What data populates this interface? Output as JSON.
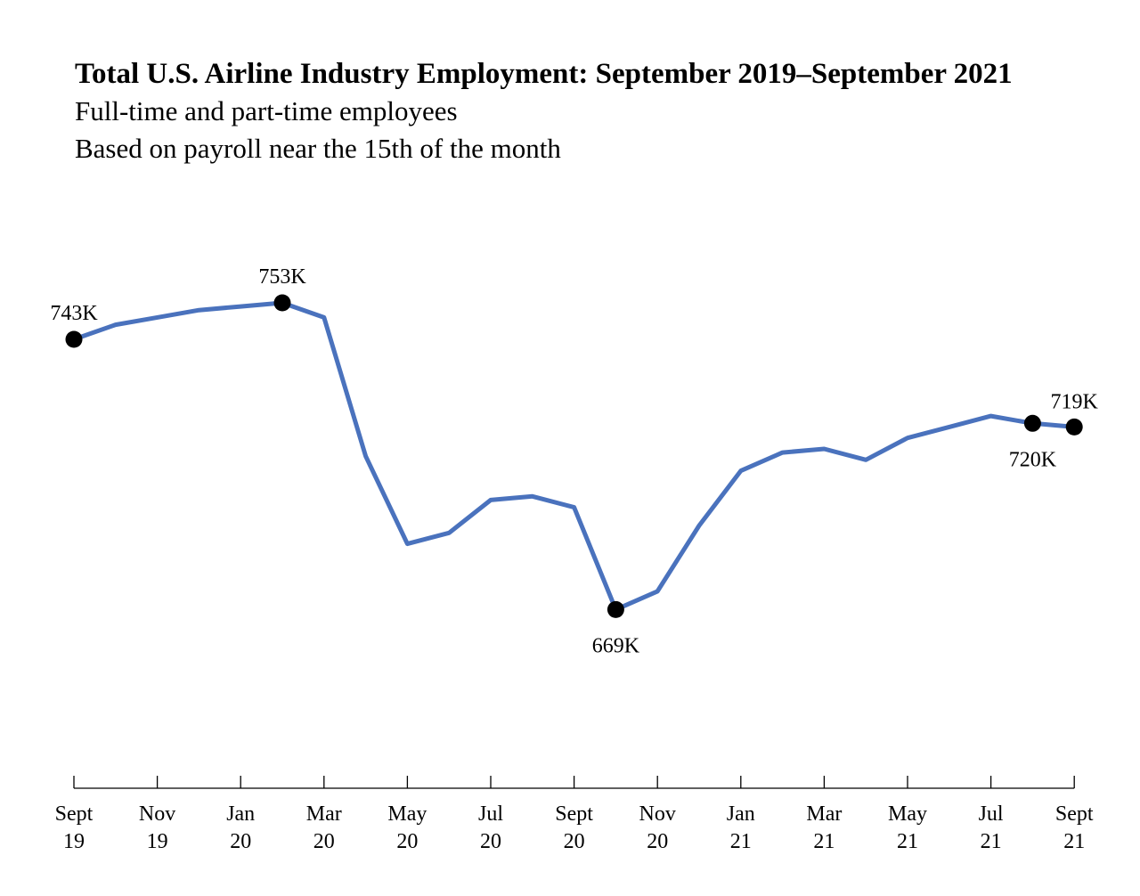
{
  "chart_data": {
    "type": "line",
    "title": "Total U.S. Airline Industry Employment: September 2019–September 2021",
    "subtitle_lines": [
      "Full-time and part-time employees",
      "Based on payroll near the 15th of the month"
    ],
    "xlabel": "",
    "ylabel": "",
    "grid": false,
    "legend": "none",
    "line_color": "#4a72bd",
    "marker_color": "#000000",
    "x_tick_labels": [
      [
        "Sept",
        "19"
      ],
      [
        "Nov",
        "19"
      ],
      [
        "Jan",
        "20"
      ],
      [
        "Mar",
        "20"
      ],
      [
        "May",
        "20"
      ],
      [
        "Jul",
        "20"
      ],
      [
        "Sept",
        "20"
      ],
      [
        "Nov",
        "20"
      ],
      [
        "Jan",
        "21"
      ],
      [
        "Mar",
        "21"
      ],
      [
        "May",
        "21"
      ],
      [
        "Jul",
        "21"
      ],
      [
        "Sept",
        "21"
      ]
    ],
    "x": [
      "Sep 2019",
      "Oct 2019",
      "Nov 2019",
      "Dec 2019",
      "Jan 2020",
      "Feb 2020",
      "Mar 2020",
      "Apr 2020",
      "May 2020",
      "Jun 2020",
      "Jul 2020",
      "Aug 2020",
      "Sep 2020",
      "Oct 2020",
      "Nov 2020",
      "Dec 2020",
      "Jan 2021",
      "Feb 2021",
      "Mar 2021",
      "Apr 2021",
      "May 2021",
      "Jun 2021",
      "Jul 2021",
      "Aug 2021",
      "Sep 2021"
    ],
    "series": [
      {
        "name": "",
        "values": [
          743,
          747,
          749,
          751,
          752,
          753,
          749,
          711,
          687,
          690,
          699,
          700,
          697,
          669,
          674,
          692,
          707,
          712,
          713,
          710,
          716,
          719,
          722,
          720,
          719
        ]
      }
    ],
    "annotations": [
      {
        "index": 0,
        "text": "743K",
        "pos": "above"
      },
      {
        "index": 5,
        "text": "753K",
        "pos": "above"
      },
      {
        "index": 13,
        "text": "669K",
        "pos": "below"
      },
      {
        "index": 23,
        "text": "720K",
        "pos": "below"
      },
      {
        "index": 24,
        "text": "719K",
        "pos": "above"
      }
    ]
  }
}
